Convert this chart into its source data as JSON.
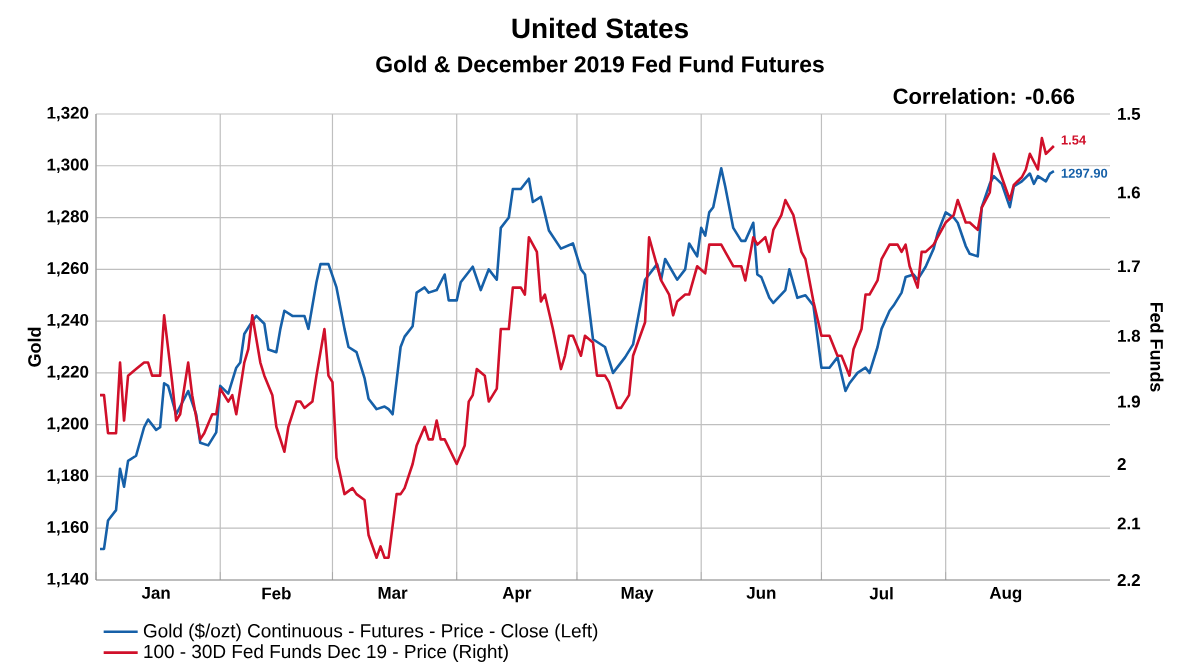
{
  "chart_data": {
    "type": "line",
    "title": "United States",
    "subtitle": "Gold & December 2019 Fed Fund Futures",
    "ylabel": "Gold",
    "y2label": "Fed Funds",
    "annotations": [
      "Correlation: -0.66",
      {
        "text": "1297.90",
        "x": "2019-08-28",
        "y": 1297.9
      },
      "1.54"
    ],
    "xlim": [
      "2019-01-01",
      "2019-09-11"
    ],
    "xticks": [
      {
        "value": "2019-01-01",
        "label": null
      },
      {
        "value": "2019-02-01",
        "label": null
      },
      {
        "value": "2019-03-01",
        "label": null
      },
      {
        "value": "2019-04-01",
        "label": null
      },
      {
        "value": "2019-05-01",
        "label": null
      },
      {
        "value": "2019-06-01",
        "label": null
      },
      {
        "value": "2019-07-01",
        "label": null
      },
      {
        "value": "2019-08-01",
        "label": null
      },
      {
        "value": "2019-01-16",
        "label": "Jan"
      },
      {
        "value": "2019-02-15",
        "label": "Feb"
      },
      {
        "value": "2019-03-16",
        "label": "Mar"
      },
      {
        "value": "2019-04-16",
        "label": "Apr"
      },
      {
        "value": "2019-05-16",
        "label": "May"
      },
      {
        "value": "2019-06-16",
        "label": "Jun"
      },
      {
        "value": "2019-07-16",
        "label": "Jul"
      },
      {
        "value": "2019-08-16",
        "label": "Aug"
      }
    ],
    "ylim": [
      1140,
      1320
    ],
    "yticks": [
      {
        "value": 1140,
        "label": "1,140"
      },
      {
        "value": 1160,
        "label": "1,160"
      },
      {
        "value": 1180,
        "label": "1,180"
      },
      {
        "value": 1200,
        "label": "1,200"
      },
      {
        "value": 1220,
        "label": "1,220"
      },
      {
        "value": 1240,
        "label": "1,240"
      },
      {
        "value": 1260,
        "label": "1,260"
      },
      {
        "value": 1280,
        "label": "1,280"
      },
      {
        "value": 1300,
        "label": "1,300"
      },
      {
        "value": 1320,
        "label": "1,320"
      }
    ],
    "y2lim": [
      2.2,
      1.5
    ],
    "y2ticks": [
      1.5,
      1.6,
      1.7,
      1.8,
      1.9,
      2,
      2.1,
      2.2
    ],
    "log": "y2",
    "grid": true,
    "legend": "bottom",
    "series": [
      {
        "name": "Gold ($/ozt) Continuous - Futures - Price - Close  (Left)",
        "color": "#1660a8",
        "x": [
          "2019-01-02",
          "2019-01-03",
          "2019-01-04",
          "2019-01-06",
          "2019-01-07",
          "2019-01-08",
          "2019-01-09",
          "2019-01-11",
          "2019-01-13",
          "2019-01-14",
          "2019-01-16",
          "2019-01-17",
          "2019-01-18",
          "2019-01-19",
          "2019-01-21",
          "2019-01-22",
          "2019-01-24",
          "2019-01-26",
          "2019-01-27",
          "2019-01-29",
          "2019-01-31",
          "2019-02-01",
          "2019-02-03",
          "2019-02-05",
          "2019-02-06",
          "2019-02-07",
          "2019-02-09",
          "2019-02-10",
          "2019-02-12",
          "2019-02-13",
          "2019-02-15",
          "2019-02-16",
          "2019-02-17",
          "2019-02-19",
          "2019-02-20",
          "2019-02-22",
          "2019-02-23",
          "2019-02-25",
          "2019-02-26",
          "2019-02-28",
          "2019-03-02",
          "2019-03-04",
          "2019-03-05",
          "2019-03-07",
          "2019-03-09",
          "2019-03-10",
          "2019-03-12",
          "2019-03-14",
          "2019-03-15",
          "2019-03-16",
          "2019-03-18",
          "2019-03-19",
          "2019-03-21",
          "2019-03-22",
          "2019-03-24",
          "2019-03-25",
          "2019-03-27",
          "2019-03-29",
          "2019-03-30",
          "2019-04-01",
          "2019-04-02",
          "2019-04-05",
          "2019-04-07",
          "2019-04-09",
          "2019-04-11",
          "2019-04-12",
          "2019-04-14",
          "2019-04-15",
          "2019-04-17",
          "2019-04-19",
          "2019-04-20",
          "2019-04-22",
          "2019-04-24",
          "2019-04-27",
          "2019-04-30",
          "2019-05-02",
          "2019-05-03",
          "2019-05-05",
          "2019-05-08",
          "2019-05-10",
          "2019-05-13",
          "2019-05-15",
          "2019-05-18",
          "2019-05-21",
          "2019-05-22",
          "2019-05-23",
          "2019-05-26",
          "2019-05-28",
          "2019-05-29",
          "2019-05-31",
          "2019-06-01",
          "2019-06-02",
          "2019-06-03",
          "2019-06-04",
          "2019-06-06",
          "2019-06-07",
          "2019-06-09",
          "2019-06-11",
          "2019-06-12",
          "2019-06-14",
          "2019-06-15",
          "2019-06-16",
          "2019-06-18",
          "2019-06-19",
          "2019-06-22",
          "2019-06-23",
          "2019-06-25",
          "2019-06-27",
          "2019-06-29",
          "2019-07-01",
          "2019-07-03",
          "2019-07-05",
          "2019-07-07",
          "2019-07-08",
          "2019-07-10",
          "2019-07-12",
          "2019-07-13",
          "2019-07-15",
          "2019-07-16",
          "2019-07-18",
          "2019-07-19",
          "2019-07-21",
          "2019-07-22",
          "2019-07-24",
          "2019-07-25",
          "2019-07-27",
          "2019-07-29",
          "2019-07-30",
          "2019-08-01",
          "2019-08-03",
          "2019-08-04",
          "2019-08-06",
          "2019-08-07",
          "2019-08-09",
          "2019-08-10",
          "2019-08-12",
          "2019-08-13",
          "2019-08-15",
          "2019-08-17",
          "2019-08-18",
          "2019-08-20",
          "2019-08-22",
          "2019-08-23",
          "2019-08-24",
          "2019-08-26",
          "2019-08-27",
          "2019-08-28"
        ],
        "values": [
          1152,
          1152,
          1163,
          1167,
          1183,
          1176,
          1186,
          1188,
          1199,
          1202,
          1198,
          1199,
          1216,
          1215,
          1204,
          1207,
          1213,
          1204,
          1193,
          1192,
          1197,
          1215,
          1212,
          1222,
          1224,
          1235,
          1240,
          1242,
          1239,
          1229,
          1228,
          1237,
          1244,
          1242,
          1242,
          1242,
          1237,
          1255,
          1262,
          1262,
          1253,
          1237,
          1230,
          1228,
          1218,
          1210,
          1206,
          1207,
          1206,
          1204,
          1230,
          1234,
          1238,
          1251,
          1253,
          1251,
          1252,
          1258,
          1248,
          1248,
          1255,
          1261,
          1252,
          1260,
          1256,
          1276,
          1280,
          1291,
          1291,
          1295,
          1286,
          1288,
          1275,
          1268,
          1270,
          1260,
          1258,
          1233,
          1230,
          1220,
          1226,
          1231,
          1256,
          1262,
          1256,
          1264,
          1256,
          1260,
          1270,
          1265,
          1276,
          1273,
          1282,
          1284,
          1299,
          1292,
          1276,
          1271,
          1271,
          1278,
          1258,
          1257,
          1249,
          1247,
          1252,
          1260,
          1249,
          1250,
          1246,
          1222,
          1222,
          1226,
          1213,
          1216,
          1220,
          1222,
          1220,
          1230,
          1237,
          1244,
          1246,
          1251,
          1257,
          1258,
          1256,
          1261,
          1268,
          1274,
          1282,
          1280,
          1278,
          1269,
          1266,
          1265,
          1284,
          1293,
          1296,
          1293,
          1284,
          1292,
          1294,
          1297,
          1293,
          1296,
          1294,
          1297,
          1297.9
        ]
      },
      {
        "name": "100 - 30D Fed Funds Dec 19 - Price  (Right)",
        "color": "#d0102a",
        "axis": "y2",
        "x": [
          "2019-01-02",
          "2019-01-03",
          "2019-01-04",
          "2019-01-06",
          "2019-01-07",
          "2019-01-08",
          "2019-01-09",
          "2019-01-11",
          "2019-01-13",
          "2019-01-14",
          "2019-01-15",
          "2019-01-17",
          "2019-01-18",
          "2019-01-20",
          "2019-01-21",
          "2019-01-22",
          "2019-01-24",
          "2019-01-25",
          "2019-01-27",
          "2019-01-28",
          "2019-01-30",
          "2019-01-31",
          "2019-02-01",
          "2019-02-03",
          "2019-02-04",
          "2019-02-05",
          "2019-02-07",
          "2019-02-08",
          "2019-02-09",
          "2019-02-11",
          "2019-02-12",
          "2019-02-14",
          "2019-02-15",
          "2019-02-17",
          "2019-02-18",
          "2019-02-20",
          "2019-02-21",
          "2019-02-22",
          "2019-02-24",
          "2019-02-25",
          "2019-02-27",
          "2019-02-28",
          "2019-03-01",
          "2019-03-02",
          "2019-03-04",
          "2019-03-06",
          "2019-03-07",
          "2019-03-09",
          "2019-03-10",
          "2019-03-12",
          "2019-03-13",
          "2019-03-14",
          "2019-03-15",
          "2019-03-17",
          "2019-03-18",
          "2019-03-19",
          "2019-03-21",
          "2019-03-22",
          "2019-03-24",
          "2019-03-25",
          "2019-03-26",
          "2019-03-27",
          "2019-03-28",
          "2019-03-29",
          "2019-04-01",
          "2019-04-03",
          "2019-04-04",
          "2019-04-05",
          "2019-04-06",
          "2019-04-08",
          "2019-04-09",
          "2019-04-11",
          "2019-04-12",
          "2019-04-14",
          "2019-04-15",
          "2019-04-17",
          "2019-04-18",
          "2019-04-19",
          "2019-04-21",
          "2019-04-22",
          "2019-04-23",
          "2019-04-25",
          "2019-04-27",
          "2019-04-28",
          "2019-04-29",
          "2019-04-30",
          "2019-05-02",
          "2019-05-03",
          "2019-05-05",
          "2019-05-06",
          "2019-05-08",
          "2019-05-09",
          "2019-05-11",
          "2019-05-12",
          "2019-05-14",
          "2019-05-15",
          "2019-05-18",
          "2019-05-19",
          "2019-05-21",
          "2019-05-22",
          "2019-05-24",
          "2019-05-25",
          "2019-05-26",
          "2019-05-28",
          "2019-05-29",
          "2019-05-30",
          "2019-05-31",
          "2019-06-02",
          "2019-06-03",
          "2019-06-04",
          "2019-06-06",
          "2019-06-07",
          "2019-06-09",
          "2019-06-11",
          "2019-06-12",
          "2019-06-14",
          "2019-06-15",
          "2019-06-17",
          "2019-06-18",
          "2019-06-19",
          "2019-06-21",
          "2019-06-22",
          "2019-06-23",
          "2019-06-24",
          "2019-06-26",
          "2019-06-27",
          "2019-06-29",
          "2019-07-01",
          "2019-07-03",
          "2019-07-05",
          "2019-07-06",
          "2019-07-08",
          "2019-07-09",
          "2019-07-11",
          "2019-07-12",
          "2019-07-13",
          "2019-07-15",
          "2019-07-16",
          "2019-07-18",
          "2019-07-20",
          "2019-07-21",
          "2019-07-22",
          "2019-07-23",
          "2019-07-25",
          "2019-07-26",
          "2019-07-27",
          "2019-07-29",
          "2019-07-30",
          "2019-08-01",
          "2019-08-03",
          "2019-08-04",
          "2019-08-06",
          "2019-08-07",
          "2019-08-09",
          "2019-08-10",
          "2019-08-12",
          "2019-08-13",
          "2019-08-15",
          "2019-08-17",
          "2019-08-18",
          "2019-08-20",
          "2019-08-21",
          "2019-08-22",
          "2019-08-24",
          "2019-08-25",
          "2019-08-26",
          "2019-08-28"
        ],
        "values": [
          1.89,
          1.89,
          1.95,
          1.95,
          1.84,
          1.93,
          1.86,
          1.85,
          1.84,
          1.84,
          1.86,
          1.86,
          1.77,
          1.87,
          1.93,
          1.92,
          1.84,
          1.89,
          1.96,
          1.95,
          1.92,
          1.92,
          1.88,
          1.9,
          1.89,
          1.92,
          1.84,
          1.82,
          1.77,
          1.84,
          1.86,
          1.89,
          1.94,
          1.98,
          1.94,
          1.9,
          1.9,
          1.91,
          1.9,
          1.86,
          1.79,
          1.86,
          1.87,
          1.99,
          2.05,
          2.04,
          2.05,
          2.06,
          2.12,
          2.16,
          2.14,
          2.16,
          2.16,
          2.05,
          2.05,
          2.04,
          2.0,
          1.97,
          1.94,
          1.96,
          1.96,
          1.93,
          1.96,
          1.96,
          2.0,
          1.97,
          1.9,
          1.89,
          1.85,
          1.86,
          1.9,
          1.88,
          1.79,
          1.79,
          1.73,
          1.73,
          1.74,
          1.66,
          1.68,
          1.75,
          1.74,
          1.79,
          1.85,
          1.83,
          1.8,
          1.8,
          1.83,
          1.8,
          1.81,
          1.86,
          1.86,
          1.87,
          1.91,
          1.91,
          1.89,
          1.83,
          1.78,
          1.66,
          1.7,
          1.72,
          1.74,
          1.77,
          1.75,
          1.74,
          1.74,
          1.72,
          1.7,
          1.71,
          1.67,
          1.67,
          1.67,
          1.68,
          1.7,
          1.7,
          1.72,
          1.66,
          1.67,
          1.66,
          1.68,
          1.65,
          1.63,
          1.61,
          1.62,
          1.63,
          1.68,
          1.69,
          1.75,
          1.8,
          1.8,
          1.83,
          1.83,
          1.86,
          1.82,
          1.79,
          1.74,
          1.74,
          1.72,
          1.69,
          1.67,
          1.67,
          1.68,
          1.67,
          1.7,
          1.73,
          1.68,
          1.68,
          1.67,
          1.66,
          1.64,
          1.63,
          1.61,
          1.64,
          1.64,
          1.65,
          1.62,
          1.6,
          1.55,
          1.58,
          1.61,
          1.59,
          1.58,
          1.57,
          1.55,
          1.57,
          1.53,
          1.55,
          1.54
        ]
      }
    ]
  }
}
